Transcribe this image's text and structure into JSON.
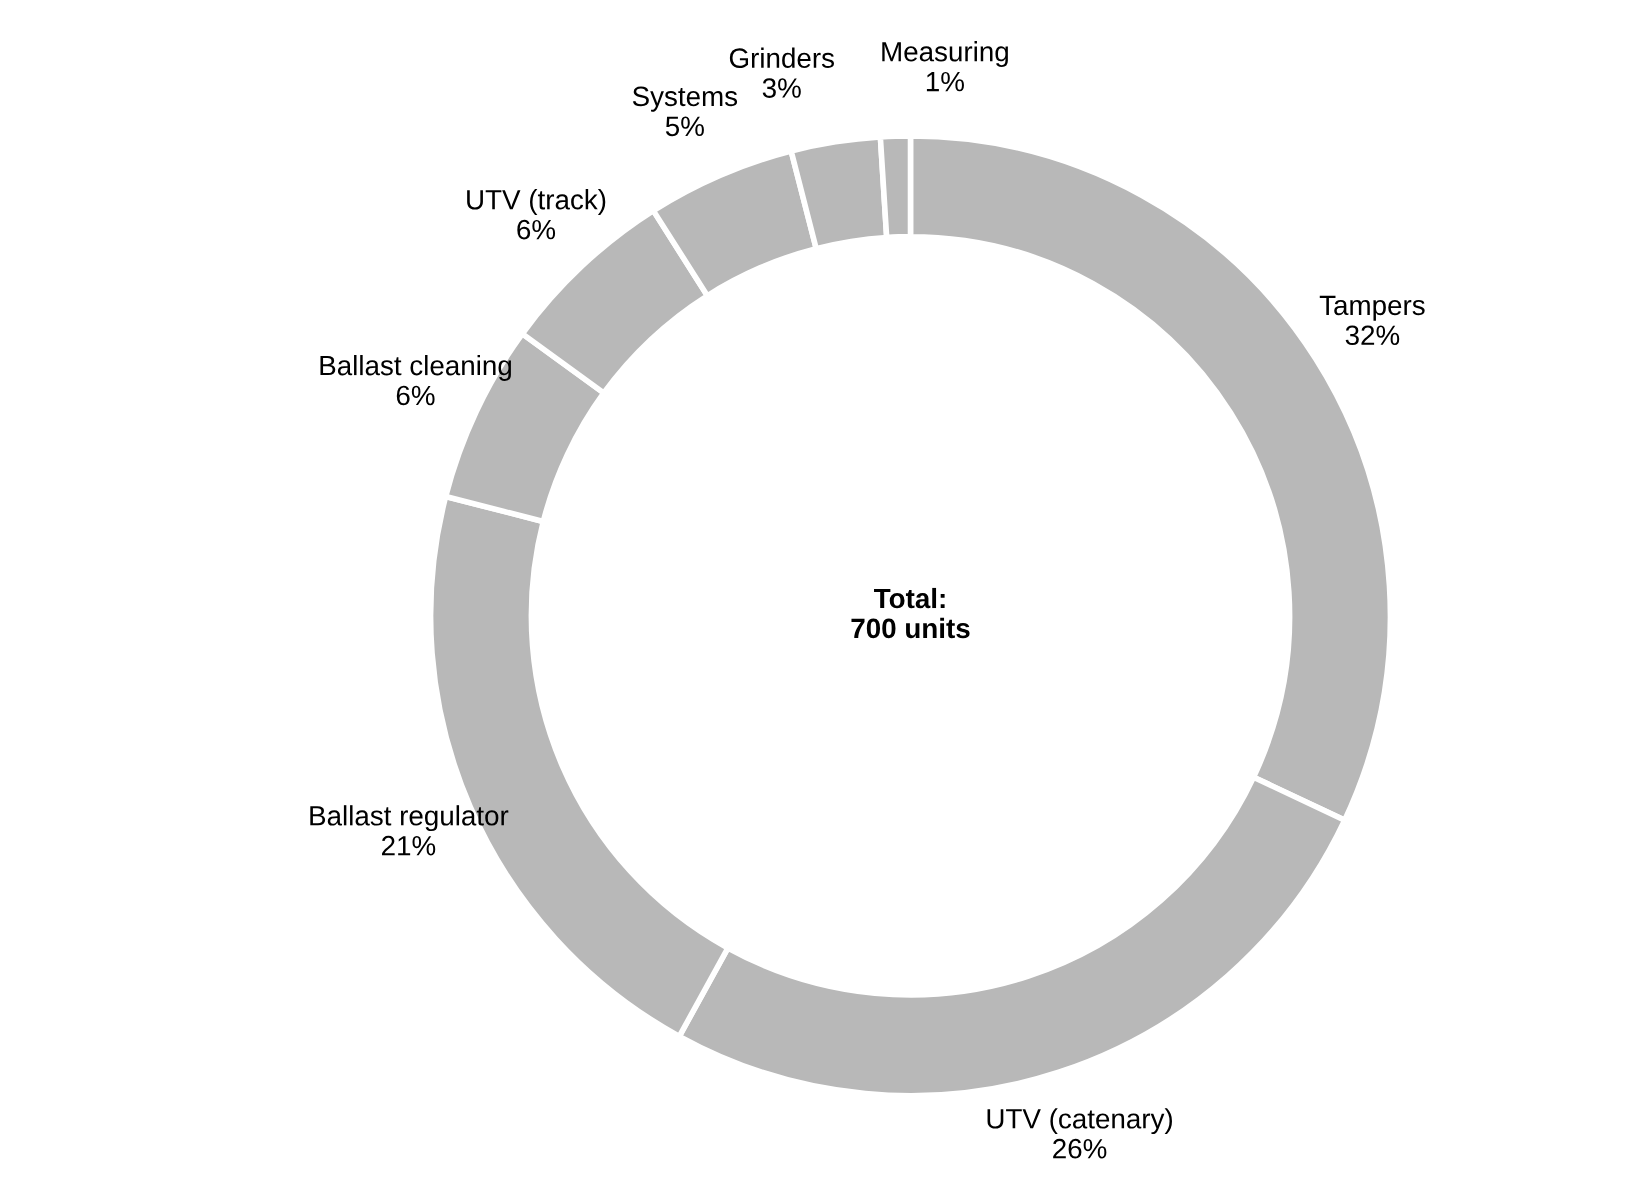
{
  "chart_data": {
    "type": "donut",
    "categories": [
      "Tampers",
      "UTV (catenary)",
      "Ballast regulator",
      "Ballast cleaning",
      "UTV (track)",
      "Systems",
      "Grinders",
      "Measuring"
    ],
    "values": [
      32,
      26,
      21,
      6,
      6,
      5,
      3,
      1
    ],
    "value_labels": [
      "32%",
      "26%",
      "21%",
      "6%",
      "6%",
      "5%",
      "3%",
      "1%"
    ],
    "colors": [
      "#b8b8b8",
      "#b8b8b8",
      "#b8b8b8",
      "#b8b8b8",
      "#b8b8b8",
      "#b8b8b8",
      "#b8b8b8",
      "#b8b8b8"
    ],
    "annotations": [
      "Total:\n700 units"
    ]
  }
}
